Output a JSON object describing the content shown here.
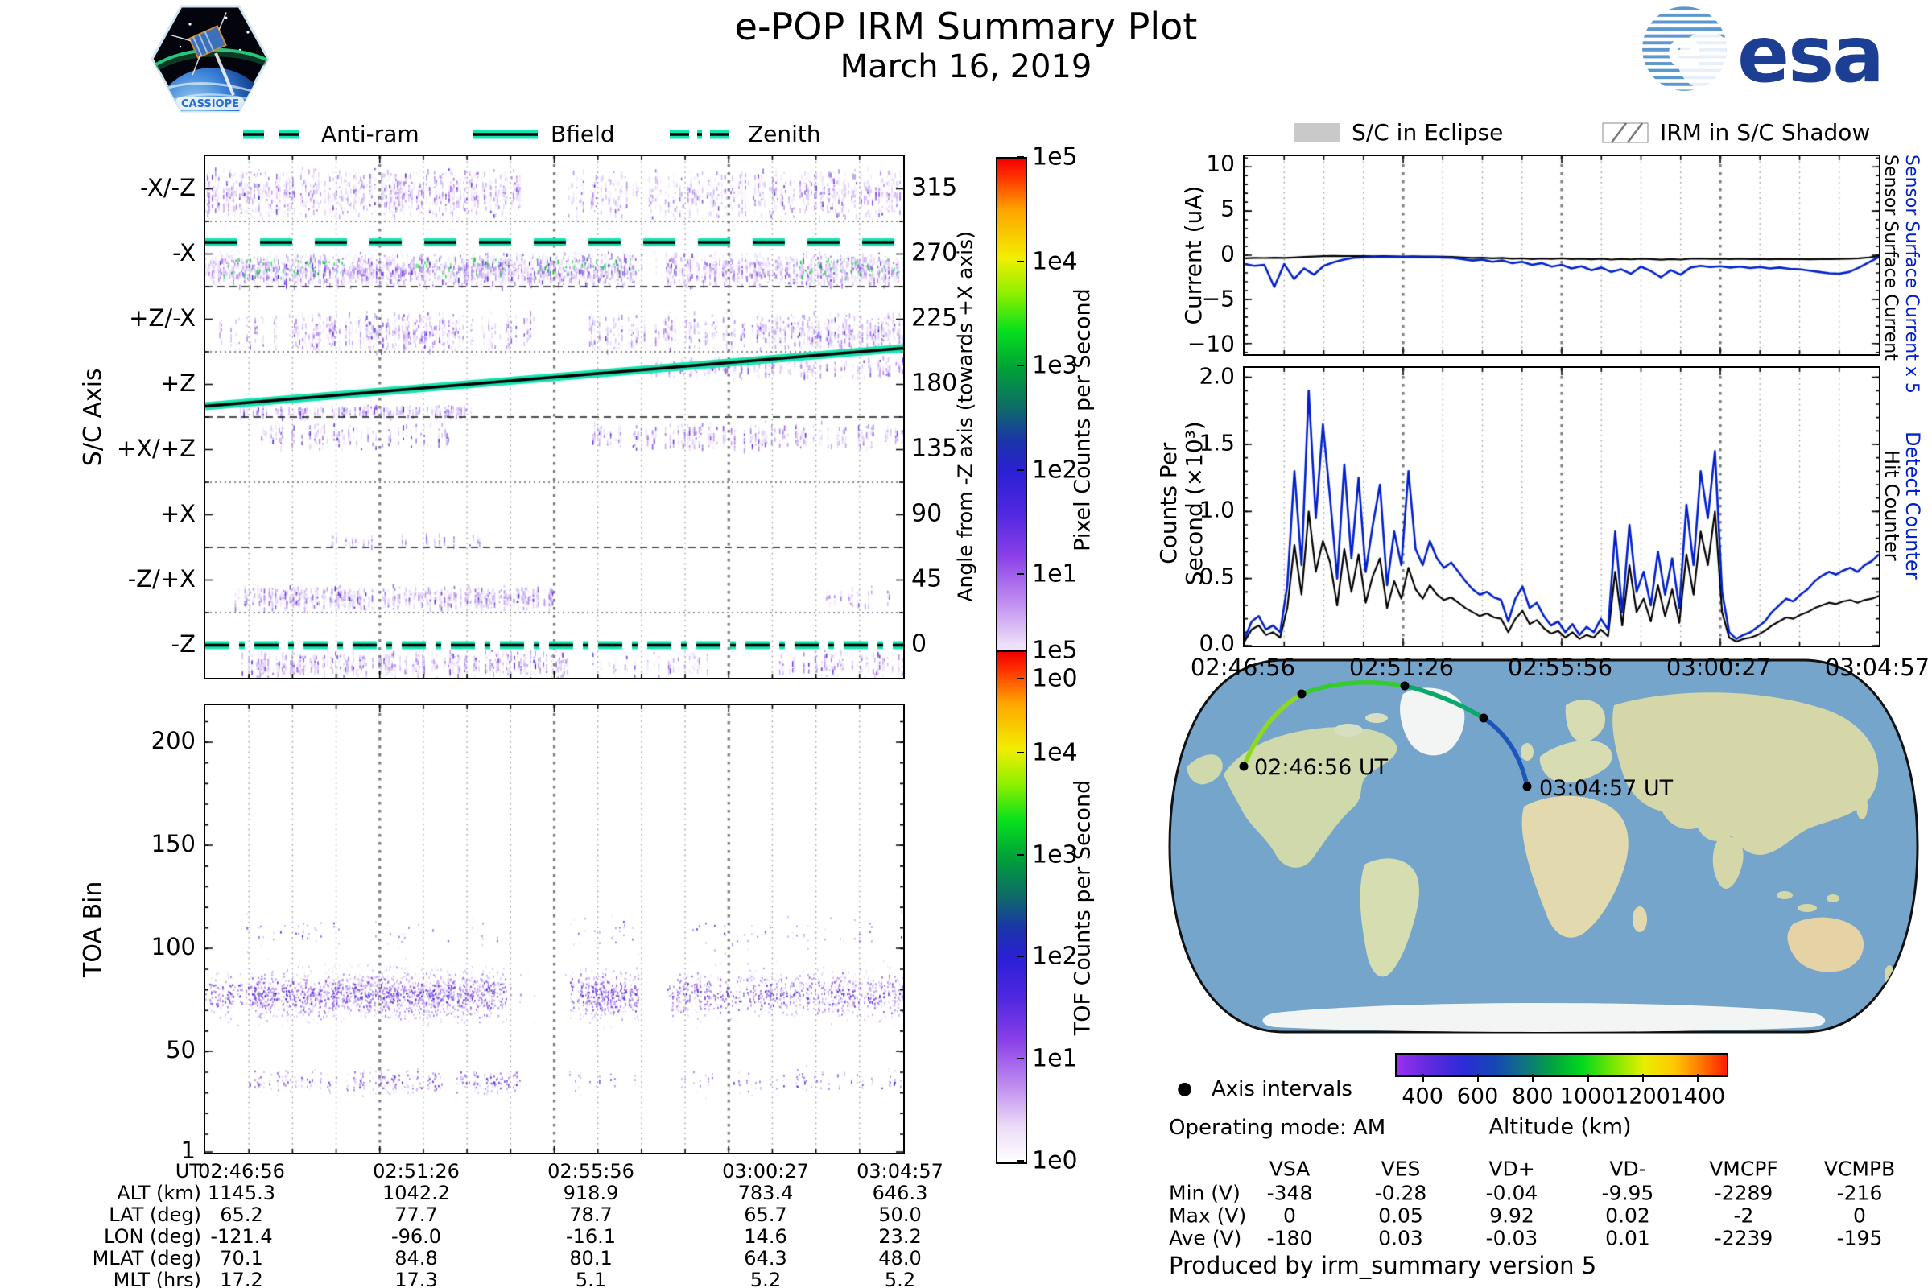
{
  "header": {
    "title": "e-POP IRM Summary Plot",
    "subtitle": "March 16, 2019",
    "patch_text": "CASSIOPE",
    "esa_text": "esa"
  },
  "colors": {
    "guide_teal": "#14e5b0",
    "series_blue": "#0020cc",
    "series_black": "#000000",
    "grid_gray": "#8a8a8a",
    "map_ocean": "#76a5cb",
    "map_land": "#cfd9ab",
    "map_ice": "#f3f5f5"
  },
  "left_legend": {
    "items": [
      {
        "label": "Anti-ram",
        "style": "dashed"
      },
      {
        "label": "Bfield",
        "style": "solid"
      },
      {
        "label": "Zenith",
        "style": "dashdot"
      }
    ]
  },
  "right_legend": {
    "items": [
      {
        "label": "S/C in Eclipse",
        "swatch": "filled"
      },
      {
        "label": "IRM in S/C Shadow",
        "swatch": "hatched"
      }
    ]
  },
  "time_axis": {
    "labels": [
      "02:46:56",
      "02:51:26",
      "02:55:56",
      "03:00:27",
      "03:04:57"
    ],
    "minor_divisions": 16,
    "major_every": 4
  },
  "chart_data": [
    {
      "type": "heatmap",
      "name": "sc-axis-spectrogram",
      "ylabel": "S/C Axis",
      "band_labels": [
        "-X/-Z",
        "-X",
        "+Z/-X",
        "+Z",
        "+X/+Z",
        "+X",
        "-Z/+X",
        "-Z"
      ],
      "right_axis": {
        "label": "Angle from -Z axis (towards +X axis)",
        "ticks": [
          "315",
          "270",
          "225",
          "180",
          "135",
          "90",
          "45",
          "0"
        ]
      },
      "colorbar": {
        "label": "Pixel Counts per Second",
        "ticks": [
          "1e5",
          "1e4",
          "1e3",
          "1e2",
          "1e1",
          "1e0"
        ]
      },
      "palette": [
        "#f0e8fc",
        "#d9c2f5",
        "#b58df0",
        "#8f5ce8",
        "#6a33dd",
        "#4a1fd0",
        "#2d22c8"
      ],
      "green_accent": [
        "#00d435",
        "#27e043",
        "#00a828"
      ],
      "guides": [
        {
          "name": "Anti-ram",
          "style": "dashed",
          "angle": 278
        },
        {
          "name": "Bfield",
          "style": "solid",
          "angle_start": 165,
          "angle_end": 205
        },
        {
          "name": "Zenith",
          "style": "dashdot",
          "angle": 0
        }
      ],
      "bands": [
        {
          "label": "-X/-Z",
          "y0": 0.15,
          "y1": 0.95,
          "segs": [
            [
              0,
              0.45,
              0.85
            ],
            [
              0.52,
              0.75,
              0.55
            ],
            [
              0.75,
              1,
              0.8
            ]
          ]
        },
        {
          "label": "-X",
          "y0": 0.45,
          "y1": 1.0,
          "segs": [
            [
              0,
              0.62,
              1.0
            ],
            [
              0.62,
              0.66,
              0.35
            ],
            [
              0.66,
              1,
              0.95
            ]
          ],
          "green": [
            [
              0.02,
              0.2
            ],
            [
              0.3,
              0.44
            ],
            [
              0.47,
              0.62
            ],
            [
              0.85,
              1
            ]
          ],
          "gy0": 0.55,
          "gy1": 0.85
        },
        {
          "label": "+Z/-X",
          "y0": 0.35,
          "y1": 1.0,
          "segs": [
            [
              0.02,
              0.12,
              0.45
            ],
            [
              0.12,
              0.35,
              0.85
            ],
            [
              0.35,
              0.47,
              0.5
            ],
            [
              0.55,
              0.8,
              0.6
            ],
            [
              0.8,
              1,
              0.75
            ]
          ]
        },
        {
          "label": "+Z",
          "y0": 0.8,
          "y1": 1.0,
          "segs": [
            [
              0.05,
              0.38,
              0.55
            ]
          ],
          "extra": {
            "y0": 0.05,
            "y1": 0.4,
            "segs": [
              [
                0.62,
                1,
                0.45
              ]
            ]
          }
        },
        {
          "label": "+X/+Z",
          "y0": 0.05,
          "y1": 0.5,
          "segs": [
            [
              0.08,
              0.35,
              0.35
            ],
            [
              0.55,
              1,
              0.45
            ]
          ]
        },
        {
          "label": "+X",
          "y0": 0.75,
          "y1": 1.0,
          "segs": [
            [
              0.18,
              0.4,
              0.3
            ]
          ]
        },
        {
          "label": "-Z/+X",
          "y0": 0.55,
          "y1": 0.95,
          "segs": [
            [
              0.04,
              0.5,
              0.7
            ],
            [
              0.88,
              1,
              0.25
            ]
          ]
        },
        {
          "label": "-Z",
          "y0": 0.55,
          "y1": 1.0,
          "segs": [
            [
              0.05,
              0.52,
              0.7
            ],
            [
              0.55,
              0.72,
              0.3
            ],
            [
              0.82,
              1,
              0.45
            ]
          ]
        }
      ]
    },
    {
      "type": "scatter",
      "name": "toa-bin-spectrogram",
      "ylabel": "TOA Bin",
      "yticks": [
        "200",
        "150",
        "100",
        "50",
        "1"
      ],
      "ymax_bin": 218,
      "colorbar": {
        "label": "TOF Counts per Second",
        "ticks": [
          "1e5",
          "1e4",
          "1e3",
          "1e2",
          "1e1",
          "1e0"
        ]
      },
      "clouds": [
        {
          "center": 78,
          "sigma": 13,
          "intensity": 1.0,
          "profile": [
            [
              0,
              0.06,
              0.5
            ],
            [
              0.06,
              0.43,
              1.0
            ],
            [
              0.43,
              0.47,
              0.3
            ],
            [
              0.47,
              0.52,
              0.04
            ],
            [
              0.52,
              0.555,
              0.85
            ],
            [
              0.555,
              0.62,
              1.0
            ],
            [
              0.62,
              0.665,
              0.15
            ],
            [
              0.665,
              0.78,
              0.7
            ],
            [
              0.78,
              1,
              0.75
            ]
          ]
        },
        {
          "center": 108,
          "sigma": 10,
          "intensity": 0.35,
          "profile": [
            [
              0.05,
              0.45,
              0.25
            ],
            [
              0.52,
              0.62,
              0.3
            ],
            [
              0.68,
              1,
              0.3
            ]
          ]
        },
        {
          "center": 36,
          "sigma": 7,
          "intensity": 0.6,
          "profile": [
            [
              0.06,
              0.2,
              0.45
            ],
            [
              0.2,
              0.45,
              0.6
            ],
            [
              0.52,
              0.62,
              0.3
            ],
            [
              0.68,
              1,
              0.35
            ]
          ]
        }
      ]
    },
    {
      "type": "line",
      "name": "sensor-surface-current",
      "ylabel": "Current (uA)",
      "ylim": [
        -11.2,
        11.2
      ],
      "yticks": [
        "10",
        "5",
        "0",
        "−5",
        "−10"
      ],
      "right_labels": [
        {
          "text": "Sensor Surface Current x 5",
          "color": "#0020cc"
        },
        {
          "text": "Sensor Surface Current",
          "color": "#000000"
        }
      ],
      "series": [
        {
          "name": "Sensor Surface Current x 5",
          "color": "#0020cc",
          "values": [
            -1.0,
            -1.2,
            -1.1,
            -3.6,
            -1.0,
            -2.7,
            -1.5,
            -2.2,
            -1.2,
            -0.8,
            -0.5,
            -0.3,
            -0.25,
            -0.2,
            -0.18,
            -0.2,
            -0.22,
            -0.2,
            -0.24,
            -0.22,
            -0.26,
            -0.3,
            -0.45,
            -0.6,
            -0.5,
            -0.75,
            -0.6,
            -0.9,
            -0.75,
            -1.1,
            -0.9,
            -1.3,
            -1.1,
            -1.5,
            -1.25,
            -1.7,
            -1.4,
            -1.9,
            -1.6,
            -2.1,
            -1.3,
            -1.8,
            -2.5,
            -1.7,
            -2.2,
            -1.4,
            -1.2,
            -1.35,
            -1.25,
            -1.4,
            -1.3,
            -1.45,
            -1.35,
            -1.5,
            -1.4,
            -1.55,
            -1.6,
            -1.75,
            -1.9,
            -2.05,
            -2.1,
            -1.9,
            -1.4,
            -0.8,
            -0.2
          ]
        },
        {
          "name": "Sensor Surface Current",
          "color": "#000000",
          "values": [
            -0.35,
            -0.3,
            -0.32,
            -0.28,
            -0.3,
            -0.26,
            -0.2,
            -0.15,
            -0.1,
            -0.08,
            -0.1,
            -0.09,
            -0.1,
            -0.12,
            -0.1,
            -0.12,
            -0.14,
            -0.12,
            -0.15,
            -0.14,
            -0.16,
            -0.2,
            -0.25,
            -0.3,
            -0.28,
            -0.35,
            -0.3,
            -0.4,
            -0.35,
            -0.45,
            -0.38,
            -0.42,
            -0.36,
            -0.44,
            -0.4,
            -0.46,
            -0.4,
            -0.5,
            -0.42,
            -0.48,
            -0.4,
            -0.45,
            -0.52,
            -0.44,
            -0.5,
            -0.4,
            -0.38,
            -0.42,
            -0.4,
            -0.44,
            -0.4,
            -0.45,
            -0.42,
            -0.46,
            -0.42,
            -0.45,
            -0.44,
            -0.46,
            -0.45,
            -0.44,
            -0.42,
            -0.4,
            -0.35,
            -0.25,
            -0.1
          ]
        }
      ]
    },
    {
      "type": "line",
      "name": "counts-per-second",
      "ylabel": "Counts Per\nSecond (×10³)",
      "ylim": [
        0,
        2.07
      ],
      "yticks": [
        "2.0",
        "1.5",
        "1.0",
        "0.5",
        "0.0"
      ],
      "right_labels": [
        {
          "text": "Detect Counter",
          "color": "#0020cc"
        },
        {
          "text": "Hit Counter",
          "color": "#000000"
        }
      ],
      "series": [
        {
          "name": "Detect Counter",
          "color": "#0020cc",
          "values": [
            0.05,
            0.18,
            0.22,
            0.12,
            0.15,
            0.1,
            0.45,
            1.3,
            0.6,
            1.9,
            0.95,
            1.65,
            1.1,
            0.5,
            1.35,
            0.65,
            1.25,
            0.55,
            0.9,
            1.2,
            0.45,
            0.85,
            0.6,
            1.3,
            0.72,
            0.6,
            0.78,
            0.65,
            0.58,
            0.62,
            0.55,
            0.48,
            0.42,
            0.38,
            0.4,
            0.36,
            0.34,
            0.18,
            0.35,
            0.44,
            0.28,
            0.32,
            0.22,
            0.15,
            0.18,
            0.1,
            0.16,
            0.08,
            0.14,
            0.1,
            0.2,
            0.12,
            0.85,
            0.25,
            0.9,
            0.4,
            0.55,
            0.3,
            0.7,
            0.38,
            0.65,
            0.28,
            1.05,
            0.6,
            1.3,
            0.95,
            1.45,
            0.4,
            0.1,
            0.05,
            0.08,
            0.1,
            0.14,
            0.18,
            0.25,
            0.3,
            0.35,
            0.33,
            0.38,
            0.42,
            0.48,
            0.52,
            0.55,
            0.53,
            0.56,
            0.58,
            0.55,
            0.6,
            0.63,
            0.68
          ]
        },
        {
          "name": "Hit Counter",
          "color": "#000000",
          "values": [
            0.03,
            0.12,
            0.15,
            0.08,
            0.1,
            0.06,
            0.28,
            0.75,
            0.38,
            1.0,
            0.55,
            0.78,
            0.62,
            0.3,
            0.72,
            0.4,
            0.68,
            0.32,
            0.52,
            0.65,
            0.28,
            0.48,
            0.35,
            0.58,
            0.42,
            0.35,
            0.45,
            0.38,
            0.34,
            0.36,
            0.32,
            0.28,
            0.25,
            0.22,
            0.24,
            0.21,
            0.2,
            0.1,
            0.2,
            0.26,
            0.16,
            0.19,
            0.13,
            0.09,
            0.11,
            0.06,
            0.1,
            0.05,
            0.08,
            0.06,
            0.12,
            0.07,
            0.55,
            0.15,
            0.6,
            0.25,
            0.35,
            0.18,
            0.45,
            0.22,
            0.42,
            0.17,
            0.68,
            0.38,
            0.85,
            0.6,
            1.0,
            0.25,
            0.06,
            0.03,
            0.05,
            0.06,
            0.08,
            0.11,
            0.15,
            0.18,
            0.21,
            0.2,
            0.23,
            0.25,
            0.28,
            0.3,
            0.32,
            0.31,
            0.33,
            0.34,
            0.32,
            0.34,
            0.35,
            0.37
          ]
        }
      ]
    },
    {
      "type": "map",
      "name": "ground-track-map",
      "start_label": "02:46:56 UT",
      "end_label": "03:04:57 UT",
      "track_altitudes_km": [
        1145.3,
        1042.2,
        918.9,
        783.4,
        646.3
      ],
      "track_segment_colors": [
        "#8fd820",
        "#35cc30",
        "#0aa86a",
        "#1e55b8"
      ],
      "colorbar": {
        "label": "Altitude (km)",
        "ticks": [
          "400",
          "600",
          "800",
          "1000",
          "1200",
          "1400"
        ],
        "range": [
          300,
          1500
        ]
      }
    }
  ],
  "ephemeris_table": {
    "row_labels": [
      "UT",
      "ALT (km)",
      "LAT (deg)",
      "LON (deg)",
      "MLAT (deg)",
      "MLT (hrs)"
    ],
    "columns": [
      [
        "02:46:56",
        "1145.3",
        "65.2",
        "-121.4",
        "70.1",
        "17.2"
      ],
      [
        "02:51:26",
        "1042.2",
        "77.7",
        "-96.0",
        "84.8",
        "17.3"
      ],
      [
        "02:55:56",
        "918.9",
        "78.7",
        "-16.1",
        "80.1",
        "5.1"
      ],
      [
        "03:00:27",
        "783.4",
        "65.7",
        "14.6",
        "64.3",
        "5.2"
      ],
      [
        "03:04:57",
        "646.3",
        "50.0",
        "23.2",
        "48.0",
        "5.2"
      ]
    ]
  },
  "voltage_table": {
    "headers": [
      "VSA",
      "VES",
      "VD+",
      "VD-",
      "VMCPF",
      "VCMPB"
    ],
    "rows": [
      {
        "label": "Min (V)",
        "values": [
          "-348",
          "-0.28",
          "-0.04",
          "-9.95",
          "-2289",
          "-216"
        ]
      },
      {
        "label": "Max (V)",
        "values": [
          "0",
          "0.05",
          "9.92",
          "0.02",
          "-2",
          "0"
        ]
      },
      {
        "label": "Ave (V)",
        "values": [
          "-180",
          "0.03",
          "-0.03",
          "0.01",
          "-2239",
          "-195"
        ]
      }
    ]
  },
  "notes": {
    "axis_intervals": "Axis intervals",
    "operating_mode": "Operating mode: AM",
    "produced_by": "Produced by irm_summary version 5"
  }
}
